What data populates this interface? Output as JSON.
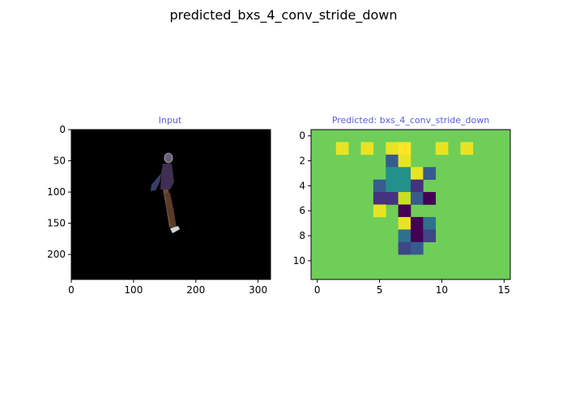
{
  "figure": {
    "suptitle": "predicted_bxs_4_conv_stride_down"
  },
  "colors": {
    "subtitle": "#5b5bdc",
    "frame": "#000000",
    "input_background": "#000000",
    "viridis": {
      "0": "#440154",
      "1": "#46327e",
      "2": "#365c8d",
      "3": "#277f8e",
      "4": "#1fa187",
      "5": "#4ac16d",
      "6": "#6ece58",
      "7": "#a0da39",
      "8": "#c8e020",
      "9": "#fde725"
    }
  },
  "chart_data": [
    {
      "type": "image",
      "title": "Input",
      "xlim": [
        0,
        320
      ],
      "ylim": [
        240,
        0
      ],
      "xticks": [
        0,
        100,
        200,
        300
      ],
      "yticks": [
        0,
        50,
        100,
        150,
        200
      ],
      "content": "black frame with a single walking figure near x≈150, y≈40–165"
    },
    {
      "type": "heatmap",
      "title": "Predicted: bxs_4_conv_stride_down",
      "colormap": "viridis",
      "xlim": [
        -0.5,
        15.5
      ],
      "ylim": [
        11.5,
        -0.5
      ],
      "xticks": [
        0,
        5,
        10,
        15
      ],
      "yticks": [
        0,
        2,
        4,
        6,
        8,
        10
      ],
      "background_value": 6,
      "cells": [
        {
          "row": 1,
          "col": 2,
          "value": 8.6
        },
        {
          "row": 1,
          "col": 4,
          "value": 8.6
        },
        {
          "row": 1,
          "col": 6,
          "value": 8.6
        },
        {
          "row": 1,
          "col": 7,
          "value": 9.6
        },
        {
          "row": 1,
          "col": 10,
          "value": 8.6
        },
        {
          "row": 1,
          "col": 12,
          "value": 8.6
        },
        {
          "row": 2,
          "col": 6,
          "value": 2
        },
        {
          "row": 2,
          "col": 7,
          "value": 8.6
        },
        {
          "row": 3,
          "col": 6,
          "value": 3.5
        },
        {
          "row": 3,
          "col": 7,
          "value": 3.5
        },
        {
          "row": 3,
          "col": 8,
          "value": 8.6
        },
        {
          "row": 3,
          "col": 9,
          "value": 2
        },
        {
          "row": 4,
          "col": 5,
          "value": 2
        },
        {
          "row": 4,
          "col": 6,
          "value": 3.5
        },
        {
          "row": 4,
          "col": 7,
          "value": 3.5
        },
        {
          "row": 4,
          "col": 8,
          "value": 1
        },
        {
          "row": 5,
          "col": 5,
          "value": 1
        },
        {
          "row": 5,
          "col": 6,
          "value": 1
        },
        {
          "row": 5,
          "col": 7,
          "value": 8
        },
        {
          "row": 5,
          "col": 8,
          "value": 2
        },
        {
          "row": 5,
          "col": 9,
          "value": 0
        },
        {
          "row": 6,
          "col": 5,
          "value": 8.6
        },
        {
          "row": 6,
          "col": 7,
          "value": 0
        },
        {
          "row": 7,
          "col": 7,
          "value": 8.6
        },
        {
          "row": 7,
          "col": 8,
          "value": 0
        },
        {
          "row": 7,
          "col": 9,
          "value": 2.6
        },
        {
          "row": 8,
          "col": 7,
          "value": 2.6
        },
        {
          "row": 8,
          "col": 8,
          "value": 0
        },
        {
          "row": 8,
          "col": 9,
          "value": 1.5
        },
        {
          "row": 9,
          "col": 7,
          "value": 1.5
        },
        {
          "row": 9,
          "col": 8,
          "value": 2
        }
      ]
    }
  ]
}
